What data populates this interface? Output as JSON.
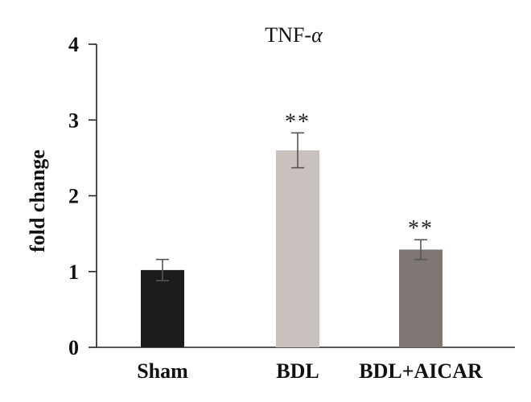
{
  "chart_data": {
    "type": "bar",
    "title_main": "TNF-",
    "title_symbol": "α",
    "ylabel": "fold change",
    "xlabel": "",
    "ylim": [
      0,
      4
    ],
    "yticks": [
      0,
      1,
      2,
      3,
      4
    ],
    "ytick_labels": [
      "0",
      "1",
      "2",
      "3",
      "4"
    ],
    "grid": false,
    "categories": [
      "Sham",
      "BDL",
      "BDL+AICAR"
    ],
    "values": [
      1.02,
      2.6,
      1.29
    ],
    "errors": [
      0.14,
      0.23,
      0.13
    ],
    "annotations": [
      "",
      "**",
      "**"
    ],
    "colors": [
      "#1c1c1c",
      "#c9c1bd",
      "#7d7673"
    ]
  }
}
